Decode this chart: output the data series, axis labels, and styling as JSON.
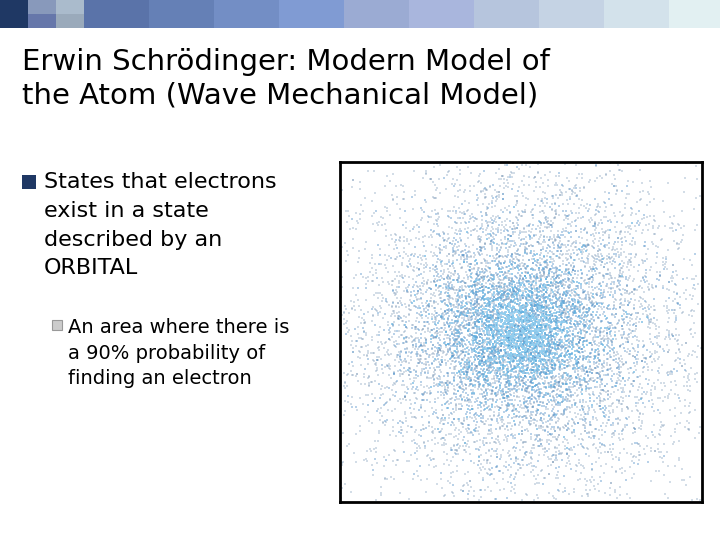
{
  "title_line1": "Erwin Schrödinger: Modern Model of",
  "title_line2": "the Atom (Wave Mechanical Model)",
  "bullet_text": "States that electrons\nexist in a state\ndescribed by an\nORBITAL",
  "sub_bullet_line1": "An area where there is",
  "sub_bullet_line2": "a 90% probability of",
  "sub_bullet_line3": "finding an electron",
  "bullet_color": "#1F3864",
  "background_color": "#FFFFFF",
  "title_fontsize": 21,
  "bullet_fontsize": 16,
  "sub_bullet_fontsize": 14,
  "n_dots_outer": 6000,
  "n_dots_mid": 3000,
  "n_dots_inner": 1500,
  "n_dots_core": 500,
  "outer_sigma": 0.28,
  "mid_sigma": 0.18,
  "inner_sigma": 0.11,
  "core_sigma": 0.055,
  "outer_color": "#7090B0",
  "mid_color": "#5090C8",
  "inner_color": "#60B0E0",
  "core_color": "#90CDEF"
}
